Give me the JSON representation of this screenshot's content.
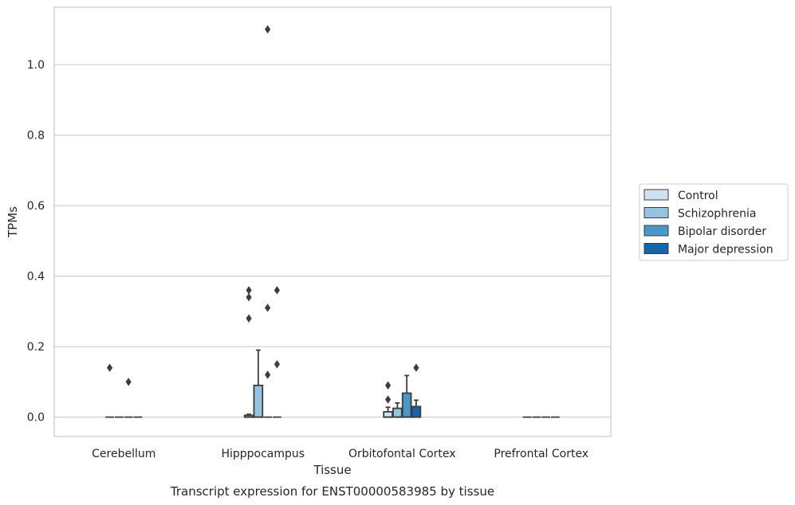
{
  "chart_data": {
    "type": "box",
    "title": "",
    "caption": "Transcript expression for ENST00000583985 by tissue",
    "xlabel": "Tissue",
    "ylabel": "TPMs",
    "ylim": [
      -0.055,
      1.163
    ],
    "yticks": [
      0.0,
      0.2,
      0.4,
      0.6,
      0.8,
      1.0
    ],
    "ytick_labels": [
      "0.0",
      "0.2",
      "0.4",
      "0.6",
      "0.8",
      "1.0"
    ],
    "grid": "horizontal",
    "legend_position": "right",
    "categories": [
      "Cerebellum",
      "Hipppocampus",
      "Orbitofontal Cortex",
      "Prefrontal Cortex"
    ],
    "series": [
      {
        "name": "Control",
        "color": "#d0e1f2",
        "boxes": [
          {
            "q1": 0,
            "median": 0,
            "q3": 0,
            "whisker_low": 0,
            "whisker_high": 0,
            "outliers": [
              0.14
            ]
          },
          {
            "q1": 0,
            "median": 0,
            "q3": 0.005,
            "whisker_low": 0,
            "whisker_high": 0.008,
            "outliers": [
              0.28,
              0.34,
              0.36
            ]
          },
          {
            "q1": 0,
            "median": 0,
            "q3": 0.015,
            "whisker_low": 0,
            "whisker_high": 0.028,
            "outliers": [
              0.05,
              0.09
            ]
          },
          {
            "q1": 0,
            "median": 0,
            "q3": 0,
            "whisker_low": 0,
            "whisker_high": 0,
            "outliers": []
          }
        ]
      },
      {
        "name": "Schizophrenia",
        "color": "#94c4df",
        "boxes": [
          {
            "q1": 0,
            "median": 0,
            "q3": 0,
            "whisker_low": 0,
            "whisker_high": 0,
            "outliers": []
          },
          {
            "q1": 0,
            "median": 0,
            "q3": 0.09,
            "whisker_low": 0,
            "whisker_high": 0.19,
            "outliers": []
          },
          {
            "q1": 0,
            "median": 0,
            "q3": 0.025,
            "whisker_low": 0,
            "whisker_high": 0.04,
            "outliers": []
          },
          {
            "q1": 0,
            "median": 0,
            "q3": 0,
            "whisker_low": 0,
            "whisker_high": 0,
            "outliers": []
          }
        ]
      },
      {
        "name": "Bipolar disorder",
        "color": "#4a98c9",
        "boxes": [
          {
            "q1": 0,
            "median": 0,
            "q3": 0,
            "whisker_low": 0,
            "whisker_high": 0,
            "outliers": [
              0.1
            ]
          },
          {
            "q1": 0,
            "median": 0,
            "q3": 0,
            "whisker_low": 0,
            "whisker_high": 0,
            "outliers": [
              0.12,
              0.31,
              1.1
            ]
          },
          {
            "q1": 0,
            "median": 0,
            "q3": 0.068,
            "whisker_low": 0,
            "whisker_high": 0.118,
            "outliers": []
          },
          {
            "q1": 0,
            "median": 0,
            "q3": 0,
            "whisker_low": 0,
            "whisker_high": 0,
            "outliers": []
          }
        ]
      },
      {
        "name": "Major depression",
        "color": "#1764ab",
        "boxes": [
          {
            "q1": 0,
            "median": 0,
            "q3": 0,
            "whisker_low": 0,
            "whisker_high": 0,
            "outliers": []
          },
          {
            "q1": 0,
            "median": 0,
            "q3": 0,
            "whisker_low": 0,
            "whisker_high": 0,
            "outliers": [
              0.15,
              0.36
            ]
          },
          {
            "q1": 0,
            "median": 0,
            "q3": 0.03,
            "whisker_low": 0,
            "whisker_high": 0.048,
            "outliers": [
              0.14
            ]
          },
          {
            "q1": 0,
            "median": 0,
            "q3": 0,
            "whisker_low": 0,
            "whisker_high": 0,
            "outliers": []
          }
        ]
      }
    ]
  }
}
